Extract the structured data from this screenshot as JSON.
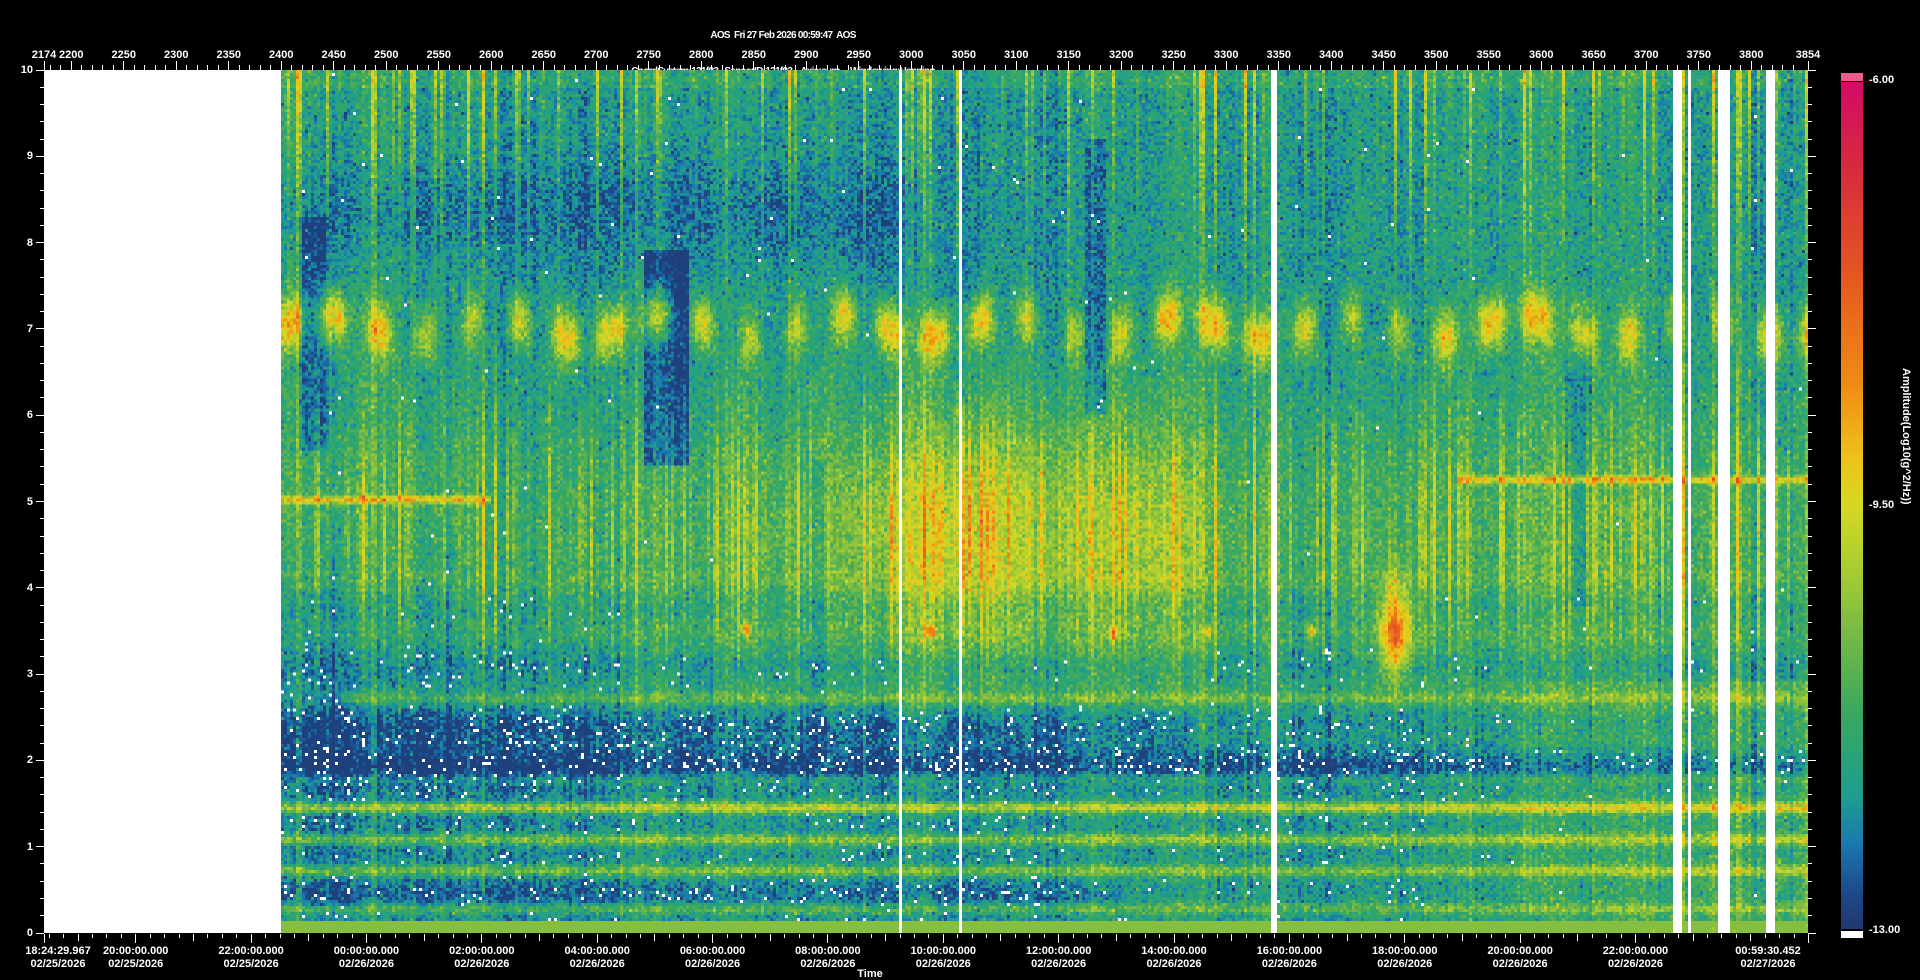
{
  "header": {
    "line1": "AOS  Fri 27 Feb 2026 00:59:47  AOS",
    "line2": "CoordSystem:121f03   SensorID:121f03    Axis:sum     Windowing:Hanning",
    "line3": "Cutoff(Hz):200      df(Hz):0.0153      Sample/Sec:500        PSD size:32768        Overlap(%):0        TimeRes.(sec):65.536"
  },
  "chart_data": {
    "type": "heatmap",
    "subtype": "spectrogram",
    "description": "Power spectral density spectrogram; frequency 0-10 Hz versus time from 02/25/2026 18:24:29.967 to 02/27/2026 00:59:30.452; amplitude Log10(g^2/Hz) colormap from -13.00 (dark blue/white) to -6.00 (magenta); record numbers 2174-3854 on top axis; no data (white) from record 2174 to 2400 plus several narrow white dropout stripes near records 2990, 3045, 3343, 3725-3825; persistent yellow blob train near 7 Hz; bright yellow patch near records 3000-3100 at 3-6 Hz; thin yellow tonal lines near 5 Hz and below 1.5 Hz; orange hotspot near record 3460 at 3.5 Hz; dark blue low-frequency band near 2 Hz",
    "record_axis": {
      "side": "top",
      "first": 2174,
      "last": 3854,
      "first_major": 2200,
      "last_major": 3800,
      "major_step": 50,
      "minor_step": 10
    },
    "frequency_axis": {
      "side": "left",
      "min": 0,
      "max": 10,
      "major_step": 1,
      "minor_step": 0.2
    },
    "time_axis": {
      "side": "bottom",
      "label": "Time",
      "span_seconds": 110100.485,
      "minor_tick_seconds": 900,
      "tick_origin_seconds": 330.033,
      "hour_origin_seconds": 2130.033,
      "labels": [
        {
          "time": "18:24:29.967",
          "date": "02/25/2026",
          "frac": 0
        },
        {
          "time": "20:00:00.000",
          "date": "02/25/2026",
          "frac": 0.052
        },
        {
          "time": "22:00:00.000",
          "date": "02/25/2026",
          "frac": 0.1174
        },
        {
          "time": "00:00:00.000",
          "date": "02/26/2026",
          "frac": 0.1828
        },
        {
          "time": "02:00:00.000",
          "date": "02/26/2026",
          "frac": 0.2482
        },
        {
          "time": "04:00:00.000",
          "date": "02/26/2026",
          "frac": 0.3136
        },
        {
          "time": "06:00:00.000",
          "date": "02/26/2026",
          "frac": 0.379
        },
        {
          "time": "08:00:00.000",
          "date": "02/26/2026",
          "frac": 0.4444
        },
        {
          "time": "10:00:00.000",
          "date": "02/26/2026",
          "frac": 0.5098
        },
        {
          "time": "12:00:00.000",
          "date": "02/26/2026",
          "frac": 0.5752
        },
        {
          "time": "14:00:00.000",
          "date": "02/26/2026",
          "frac": 0.6406
        },
        {
          "time": "16:00:00.000",
          "date": "02/26/2026",
          "frac": 0.706
        },
        {
          "time": "18:00:00.000",
          "date": "02/26/2026",
          "frac": 0.7714
        },
        {
          "time": "20:00:00.000",
          "date": "02/26/2026",
          "frac": 0.8368
        },
        {
          "time": "22:00:00.000",
          "date": "02/26/2026",
          "frac": 0.9022
        },
        {
          "time": "00:59:30.452",
          "date": "02/27/2026",
          "frac": 1
        }
      ]
    },
    "colorbar": {
      "label": "Amplitude(Log10(g^2/Hz))",
      "vmax_label": "-6.00",
      "vmid_label": "-9.50",
      "vmin_label": "-13.00",
      "vmax": -6,
      "vmin": -13,
      "top_cap_color": "#ee5c90",
      "bottom_cap_color": "#ffffff",
      "stops": [
        [
          -6.0,
          "#d40a66"
        ],
        [
          -6.7,
          "#d62a3e"
        ],
        [
          -7.7,
          "#e65c1e"
        ],
        [
          -8.5,
          "#f08c14"
        ],
        [
          -9.1,
          "#eec11a"
        ],
        [
          -9.5,
          "#d6d822"
        ],
        [
          -10.0,
          "#abce30"
        ],
        [
          -10.6,
          "#74b846"
        ],
        [
          -11.2,
          "#3aa85e"
        ],
        [
          -11.9,
          "#1d9e8e"
        ],
        [
          -12.3,
          "#1a78b0"
        ],
        [
          -12.7,
          "#1d4a8a"
        ],
        [
          -13.0,
          "#20386e"
        ]
      ]
    },
    "no_data_region": {
      "record_start": 2174,
      "record_end": 2400,
      "color": "#ffffff"
    },
    "gap_stripes": [
      [
        0.4053,
        2
      ],
      [
        0.4433,
        2
      ],
      [
        0.6483,
        5
      ],
      [
        0.9109,
        8
      ],
      [
        0.9214,
        3
      ],
      [
        0.9417,
        11
      ],
      [
        0.9725,
        10
      ]
    ],
    "texture": {
      "seed": 421337,
      "base": -11.85,
      "noise": 1.1,
      "top_streak_prob": 0.17,
      "mid_streak_prob": 0.3,
      "necklace": {
        "f_center": 7.02,
        "strength": 2.6,
        "count": 33
      },
      "mid_band": {
        "f_center": 4.65,
        "sigma": 1.05,
        "lift": 0.7,
        "streak_max": 1.5,
        "hot_x": 0.45,
        "hot_strength": 1.6,
        "hot2_x": 0.575
      },
      "warm_right": {
        "x_start": 0.74,
        "f_max": 2.9,
        "strength": 0.6
      },
      "cold_left": {
        "x_end": 0.235,
        "strength": 0.8
      },
      "h_lines": [
        [
          5.02,
          0.0,
          0.137,
          2.1,
          0.0018
        ],
        [
          5.25,
          0.77,
          1.0,
          2.1,
          0.0018
        ],
        [
          1.45,
          0.0,
          1.0,
          2.0
        ],
        [
          1.08,
          0.0,
          1.0,
          1.5
        ],
        [
          0.72,
          0.0,
          1.0,
          1.4
        ],
        [
          0.28,
          0.0,
          1.0,
          1.0
        ],
        [
          2.72,
          0.04,
          1.0,
          0.8
        ],
        [
          1.78,
          0.0,
          1.0,
          0.7
        ]
      ],
      "dark_bands": [
        [
          1.92,
          0.14,
          0.95,
          1.0
        ],
        [
          8.35,
          0.38,
          0.5,
          0.42
        ],
        [
          2.3,
          0.18,
          0.5,
          0.6
        ],
        [
          0.45,
          0.1,
          0.5,
          0.55
        ]
      ],
      "blue_blocks": [
        [
          0.237,
          0.03,
          5.4,
          7.9,
          1.15
        ],
        [
          0.012,
          0.02,
          5.6,
          8.3,
          0.85
        ],
        [
          0.527,
          0.013,
          6.0,
          9.2,
          0.85
        ],
        [
          0.838,
          0.02,
          3.8,
          7.2,
          0.55
        ],
        [
          0.345,
          0.012,
          2.0,
          5.5,
          0.6
        ]
      ],
      "hot_spots": [
        [
          0.7296,
          3.5,
          0.007,
          0.38,
          3.4
        ],
        [
          0.305,
          3.52,
          0.002,
          0.05,
          2.6
        ],
        [
          0.425,
          3.5,
          0.002,
          0.05,
          2.4
        ],
        [
          0.545,
          3.48,
          0.002,
          0.05,
          2.6
        ],
        [
          0.607,
          3.5,
          0.002,
          0.05,
          2.4
        ],
        [
          0.675,
          3.5,
          0.002,
          0.05,
          2.2
        ]
      ],
      "bright_cols": [
        [
          0.9165,
          2.3
        ],
        [
          0.9545,
          2.0
        ],
        [
          0.012,
          1.8
        ],
        [
          0.06,
          1.5
        ]
      ]
    }
  }
}
